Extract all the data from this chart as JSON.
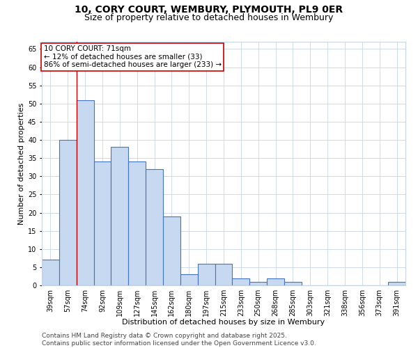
{
  "title_line1": "10, CORY COURT, WEMBURY, PLYMOUTH, PL9 0ER",
  "title_line2": "Size of property relative to detached houses in Wembury",
  "xlabel": "Distribution of detached houses by size in Wembury",
  "ylabel": "Number of detached properties",
  "categories": [
    "39sqm",
    "57sqm",
    "74sqm",
    "92sqm",
    "109sqm",
    "127sqm",
    "145sqm",
    "162sqm",
    "180sqm",
    "197sqm",
    "215sqm",
    "233sqm",
    "250sqm",
    "268sqm",
    "285sqm",
    "303sqm",
    "321sqm",
    "338sqm",
    "356sqm",
    "373sqm",
    "391sqm"
  ],
  "values": [
    7,
    40,
    51,
    34,
    38,
    34,
    32,
    19,
    3,
    6,
    6,
    2,
    1,
    2,
    1,
    0,
    0,
    0,
    0,
    0,
    1
  ],
  "bar_color": "#c6d9f0",
  "bar_edge_color": "#4472c4",
  "bar_linewidth": 0.8,
  "vline_x": 1.5,
  "vline_color": "#cc0000",
  "annotation_text": "10 CORY COURT: 71sqm\n← 12% of detached houses are smaller (33)\n86% of semi-detached houses are larger (233) →",
  "annotation_box_color": "#ffffff",
  "annotation_box_edge": "#cc0000",
  "ylim": [
    0,
    67
  ],
  "yticks": [
    0,
    5,
    10,
    15,
    20,
    25,
    30,
    35,
    40,
    45,
    50,
    55,
    60,
    65
  ],
  "bg_color": "#ffffff",
  "grid_color": "#c8d4e8",
  "footer_line1": "Contains HM Land Registry data © Crown copyright and database right 2025.",
  "footer_line2": "Contains public sector information licensed under the Open Government Licence v3.0.",
  "title_fontsize": 10,
  "subtitle_fontsize": 9,
  "axis_label_fontsize": 8,
  "tick_fontsize": 7,
  "annotation_fontsize": 7.5,
  "footer_fontsize": 6.5
}
